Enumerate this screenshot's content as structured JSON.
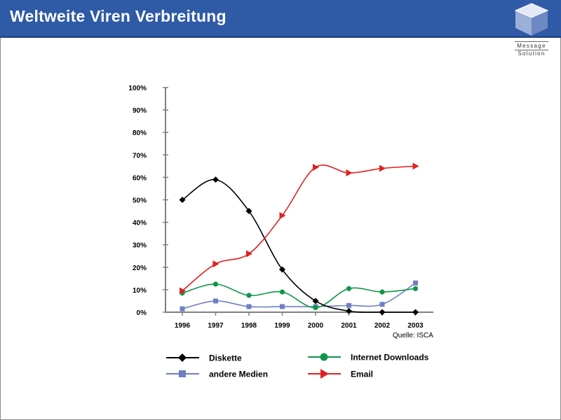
{
  "header": {
    "title": "Weltweite Viren Verbreitung",
    "logo_line1": "Message",
    "logo_line2": "Solution"
  },
  "chart_data": {
    "type": "line",
    "title": "",
    "xlabel": "",
    "ylabel": "",
    "categories": [
      "1996",
      "1997",
      "1998",
      "1999",
      "2000",
      "2001",
      "2002",
      "2003"
    ],
    "y_ticks": [
      "0%",
      "10%",
      "20%",
      "30%",
      "40%",
      "50%",
      "60%",
      "70%",
      "80%",
      "90%",
      "100%"
    ],
    "ylim": [
      0,
      100
    ],
    "grid": false,
    "legend_placement": "bottom",
    "series": [
      {
        "name": "Diskette",
        "marker": "diamond",
        "color": "#000000",
        "values": [
          50,
          59,
          45,
          19,
          5,
          0.5,
          0,
          0
        ]
      },
      {
        "name": "Internet Downloads",
        "marker": "circle",
        "color": "#0f9648",
        "values": [
          8.5,
          12.5,
          7.5,
          9,
          2,
          10.5,
          9,
          10.5
        ]
      },
      {
        "name": "andere Medien",
        "marker": "square",
        "color": "#6f7fc1",
        "values": [
          1.5,
          5,
          2.5,
          2.5,
          2.5,
          3,
          3.5,
          13
        ]
      },
      {
        "name": "Email",
        "marker": "triangle",
        "color": "#e02020",
        "values": [
          9.5,
          21.5,
          26,
          43,
          64.5,
          62,
          64,
          65
        ]
      }
    ],
    "source": "Quelle: ISCA"
  }
}
